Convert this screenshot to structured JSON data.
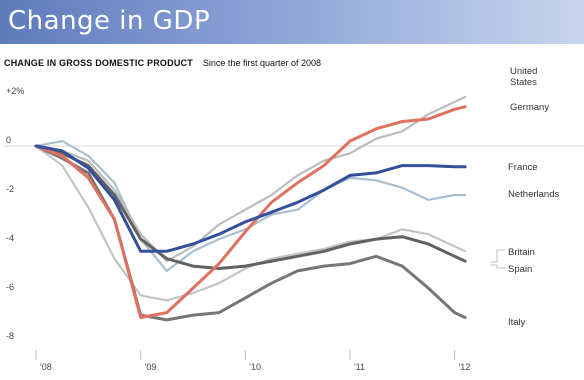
{
  "banner": {
    "title": "Change in GDP"
  },
  "header": {
    "title": "CHANGE IN GROSS DOMESTIC PRODUCT",
    "subtitle": "Since the first quarter of 2008"
  },
  "chart_data": {
    "type": "line",
    "title": "CHANGE IN GROSS DOMESTIC PRODUCT",
    "subtitle": "Since the first quarter of 2008",
    "xlabel": "",
    "ylabel": "",
    "x_ticks": [
      "'08",
      "'09",
      "'10",
      "'11",
      "'12"
    ],
    "x_range": [
      2008.0,
      2012.3
    ],
    "y_ticks": [
      "+2%",
      "0",
      "-2",
      "-4",
      "-6",
      "-8"
    ],
    "y_tick_values": [
      2,
      0,
      -2,
      -4,
      -6,
      -8
    ],
    "ylim": [
      -8,
      2
    ],
    "grid": "zero line only",
    "legend": "labels at line ends on the right",
    "series": [
      {
        "name": "United States",
        "label_lines": [
          "United",
          "States"
        ],
        "color": "#b9bcc0",
        "x": [
          2008.0,
          2008.25,
          2008.5,
          2008.75,
          2009.0,
          2009.25,
          2009.5,
          2009.75,
          2010.0,
          2010.25,
          2010.5,
          2010.75,
          2011.0,
          2011.25,
          2011.5,
          2011.75,
          2012.0,
          2012.1
        ],
        "y": [
          0,
          -0.2,
          -0.6,
          -1.8,
          -3.6,
          -4.7,
          -4.1,
          -3.2,
          -2.6,
          -2.0,
          -1.2,
          -0.6,
          -0.3,
          0.3,
          0.6,
          1.3,
          1.8,
          2.0
        ]
      },
      {
        "name": "Germany",
        "label_lines": [
          "Germany"
        ],
        "color": "#e0715e",
        "x": [
          2008.0,
          2008.25,
          2008.5,
          2008.75,
          2009.0,
          2009.25,
          2009.5,
          2009.75,
          2010.0,
          2010.25,
          2010.5,
          2010.75,
          2011.0,
          2011.25,
          2011.5,
          2011.75,
          2012.0,
          2012.1
        ],
        "y": [
          0,
          -0.4,
          -1.3,
          -3.0,
          -7.0,
          -6.8,
          -5.8,
          -4.8,
          -3.5,
          -2.3,
          -1.5,
          -0.8,
          0.2,
          0.7,
          1.0,
          1.1,
          1.5,
          1.6
        ]
      },
      {
        "name": "France",
        "label_lines": [
          "France"
        ],
        "color": "#35509a",
        "x": [
          2008.0,
          2008.25,
          2008.5,
          2008.75,
          2009.0,
          2009.25,
          2009.5,
          2009.75,
          2010.0,
          2010.25,
          2010.5,
          2010.75,
          2011.0,
          2011.25,
          2011.5,
          2011.75,
          2012.0,
          2012.1
        ],
        "y": [
          0,
          -0.2,
          -0.9,
          -2.2,
          -4.3,
          -4.3,
          -4.0,
          -3.6,
          -3.1,
          -2.7,
          -2.3,
          -1.8,
          -1.2,
          -1.1,
          -0.8,
          -0.8,
          -0.85,
          -0.85
        ]
      },
      {
        "name": "Netherlands",
        "label_lines": [
          "Netherlands"
        ],
        "color": "#a9bfd1",
        "x": [
          2008.0,
          2008.25,
          2008.5,
          2008.75,
          2009.0,
          2009.25,
          2009.5,
          2009.75,
          2010.0,
          2010.25,
          2010.5,
          2010.75,
          2011.0,
          2011.25,
          2011.5,
          2011.75,
          2012.0,
          2012.1
        ],
        "y": [
          0,
          0.2,
          -0.4,
          -1.5,
          -3.8,
          -5.1,
          -4.3,
          -3.8,
          -3.4,
          -2.8,
          -2.6,
          -1.8,
          -1.3,
          -1.4,
          -1.7,
          -2.2,
          -2.0,
          -2.0
        ]
      },
      {
        "name": "Britain",
        "label_lines": [
          "Britain"
        ],
        "color": "#c4c4c4",
        "x": [
          2008.0,
          2008.25,
          2008.5,
          2008.75,
          2009.0,
          2009.25,
          2009.5,
          2009.75,
          2010.0,
          2010.25,
          2010.5,
          2010.75,
          2011.0,
          2011.25,
          2011.5,
          2011.75,
          2012.0,
          2012.1
        ],
        "y": [
          0,
          -0.8,
          -2.5,
          -4.6,
          -6.1,
          -6.3,
          -6.0,
          -5.6,
          -5.0,
          -4.6,
          -4.4,
          -4.2,
          -3.9,
          -3.8,
          -3.4,
          -3.6,
          -4.1,
          -4.3
        ]
      },
      {
        "name": "Spain",
        "label_lines": [
          "Spain"
        ],
        "color": "#626262",
        "x": [
          2008.0,
          2008.25,
          2008.5,
          2008.75,
          2009.0,
          2009.25,
          2009.5,
          2009.75,
          2010.0,
          2010.25,
          2010.5,
          2010.75,
          2011.0,
          2011.25,
          2011.5,
          2011.75,
          2012.0,
          2012.1
        ],
        "y": [
          0,
          -0.3,
          -0.8,
          -2.0,
          -3.8,
          -4.6,
          -4.9,
          -5.0,
          -4.9,
          -4.7,
          -4.5,
          -4.3,
          -4.0,
          -3.8,
          -3.7,
          -4.0,
          -4.5,
          -4.7
        ]
      },
      {
        "name": "Italy",
        "label_lines": [
          "Italy"
        ],
        "color": "#767676",
        "x": [
          2008.0,
          2008.25,
          2008.5,
          2008.75,
          2009.0,
          2009.25,
          2009.5,
          2009.75,
          2010.0,
          2010.25,
          2010.5,
          2010.75,
          2011.0,
          2011.25,
          2011.5,
          2011.75,
          2012.0,
          2012.1
        ],
        "y": [
          0,
          -0.5,
          -1.1,
          -3.0,
          -6.9,
          -7.1,
          -6.9,
          -6.8,
          -6.2,
          -5.6,
          -5.1,
          -4.9,
          -4.8,
          -4.5,
          -4.9,
          -5.8,
          -6.8,
          -7.0
        ]
      }
    ]
  }
}
